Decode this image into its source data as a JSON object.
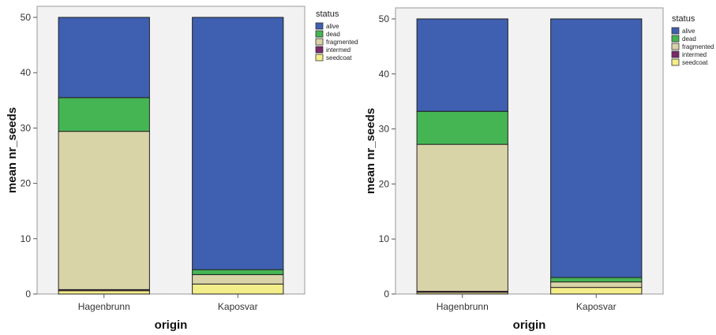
{
  "chart_data": [
    {
      "type": "bar",
      "stacked": true,
      "categories": [
        "Hagenbrunn",
        "Kaposvar"
      ],
      "xlabel": "origin",
      "ylabel": "mean nr_seeds",
      "ylim": [
        0,
        52
      ],
      "yticks": [
        0,
        10,
        20,
        30,
        40,
        50
      ],
      "legend_title": "status",
      "legend_position": "top-right outside plot",
      "series": [
        {
          "name": "seedcoat",
          "color": "#f4ee8a",
          "values": [
            0.6,
            1.8
          ]
        },
        {
          "name": "intermed",
          "color": "#7a2a6a",
          "values": [
            0.2,
            0.0
          ]
        },
        {
          "name": "fragmented",
          "color": "#d9d3a8",
          "values": [
            28.6,
            1.7
          ]
        },
        {
          "name": "dead",
          "color": "#45b554",
          "values": [
            6.1,
            0.9
          ]
        },
        {
          "name": "alive",
          "color": "#3f5fb0",
          "values": [
            14.5,
            45.6
          ]
        }
      ]
    },
    {
      "type": "bar",
      "stacked": true,
      "categories": [
        "Hagenbrunn",
        "Kaposvar"
      ],
      "xlabel": "origin",
      "ylabel": "mean nr_seeds",
      "ylim": [
        0,
        52
      ],
      "yticks": [
        0,
        10,
        20,
        30,
        40,
        50
      ],
      "legend_title": "status",
      "legend_position": "top-right outside plot",
      "series": [
        {
          "name": "seedcoat",
          "color": "#f4ee8a",
          "values": [
            0.3,
            1.2
          ]
        },
        {
          "name": "intermed",
          "color": "#7a2a6a",
          "values": [
            0.2,
            0.0
          ]
        },
        {
          "name": "fragmented",
          "color": "#d9d3a8",
          "values": [
            26.7,
            1.0
          ]
        },
        {
          "name": "dead",
          "color": "#45b554",
          "values": [
            6.0,
            0.8
          ]
        },
        {
          "name": "alive",
          "color": "#3f5fb0",
          "values": [
            16.8,
            47.0
          ]
        }
      ]
    }
  ],
  "legend_order": [
    "alive",
    "dead",
    "fragmented",
    "intermed",
    "seedcoat"
  ]
}
